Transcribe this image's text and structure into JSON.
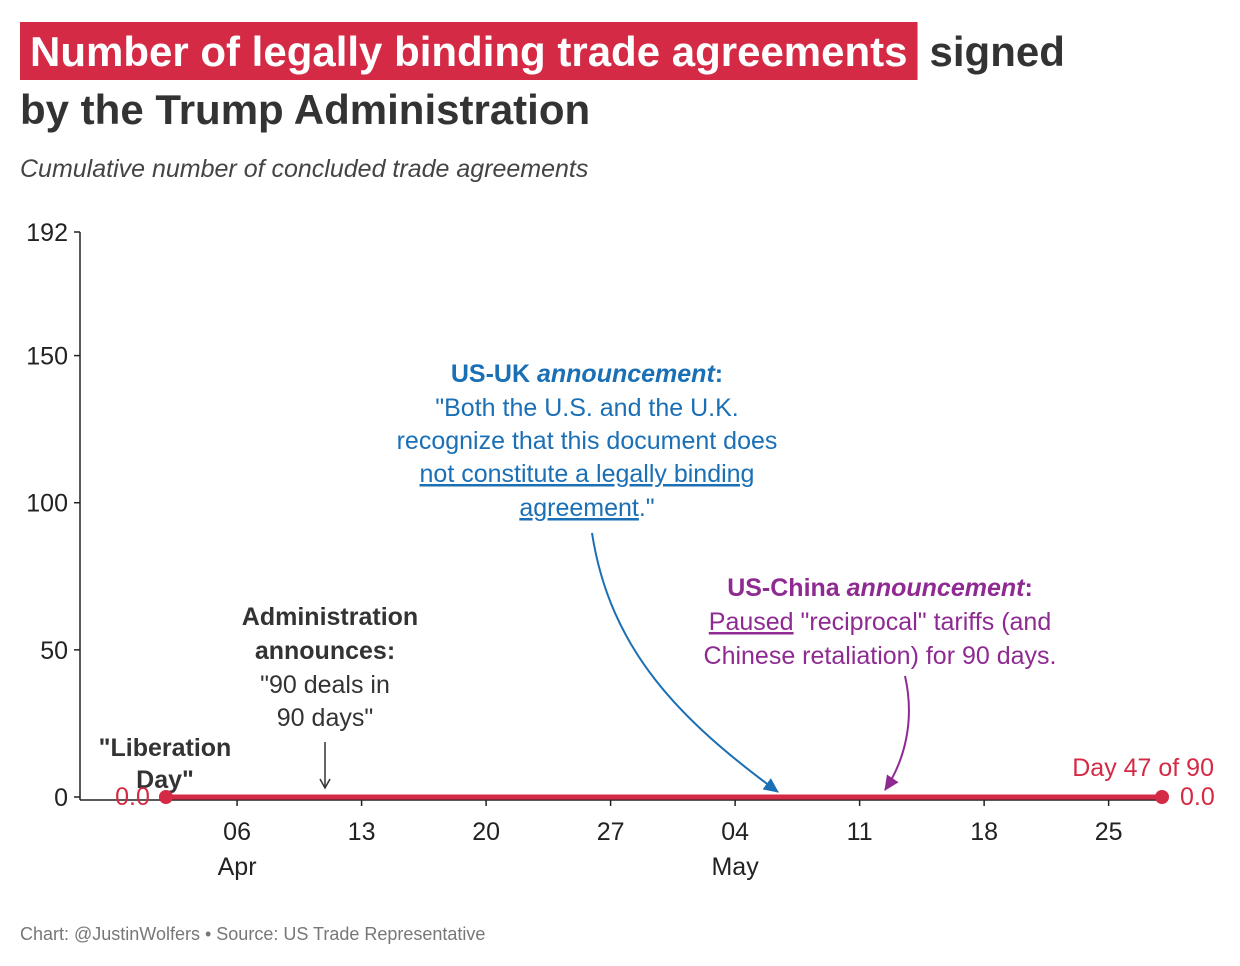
{
  "chart_data": {
    "type": "line",
    "title": [
      "Number of legally binding trade agreements",
      "signed",
      "by the Trump Administration"
    ],
    "subtitle": "Cumulative number of concluded trade agreements",
    "x": [
      "04-02",
      "05-28"
    ],
    "values": [
      0,
      0
    ],
    "value_labels": [
      "0.0",
      "0.0"
    ],
    "color": "#d42a45",
    "xlim": [
      "03-28",
      "05-28"
    ],
    "xticks": [
      {
        "value": "04-06",
        "label": "06"
      },
      {
        "value": "04-13",
        "label": "13"
      },
      {
        "value": "04-20",
        "label": "20"
      },
      {
        "value": "04-27",
        "label": "27"
      },
      {
        "value": "05-04",
        "label": "04"
      },
      {
        "value": "05-11",
        "label": "11"
      },
      {
        "value": "05-18",
        "label": "18"
      },
      {
        "value": "05-25",
        "label": "25"
      }
    ],
    "x_month_labels": [
      {
        "value": "04-06",
        "label": "Apr"
      },
      {
        "value": "05-04",
        "label": "May"
      }
    ],
    "ylim": [
      0,
      192
    ],
    "yticks": [
      0,
      50,
      100,
      150,
      192
    ],
    "grid": false,
    "annotations": {
      "liberation_day": [
        "\"Liberation",
        "Day\""
      ],
      "administration": [
        [
          "Administration",
          "announces:"
        ],
        [
          "\"90 deals in",
          "90 days\""
        ]
      ],
      "us_uk": [
        [
          "US-UK ",
          "announcement",
          ":"
        ],
        [
          "\"Both the U.S. and the U.K."
        ],
        [
          "recognize that this document does"
        ],
        [
          "not constitute a legally binding"
        ],
        [
          "agreement",
          ".\""
        ]
      ],
      "us_china": [
        [
          "US-China ",
          "announcement",
          ":"
        ],
        [
          "Paused",
          " \"reciprocal\" tariffs (and"
        ],
        [
          "Chinese retaliation) for 90 days."
        ]
      ],
      "end_label": "Day 47 of 90"
    },
    "footer": "Chart: @JustinWolfers • Source: US Trade Representative"
  }
}
